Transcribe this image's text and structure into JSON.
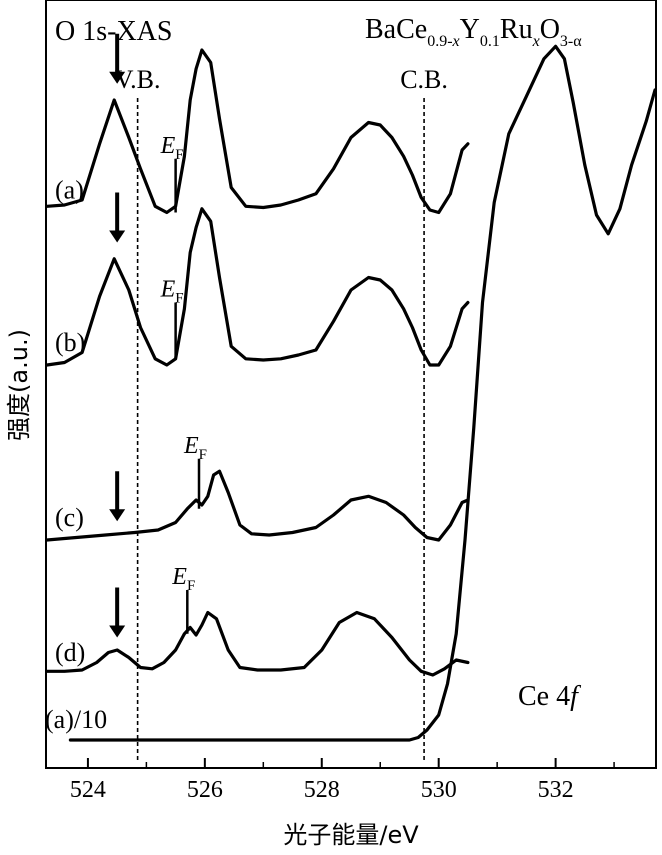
{
  "chart_data": {
    "type": "line",
    "title_left": "O 1s-XAS",
    "title_right_parts": [
      "BaCe",
      "0.9-",
      "x",
      "Y",
      "0.1",
      "Ru",
      "x",
      "O",
      "3-α"
    ],
    "xlabel": "光子能量/eV",
    "ylabel": "强度(a.u.)",
    "xlim": [
      523.3,
      533.7
    ],
    "xticks": [
      524,
      526,
      528,
      530,
      532
    ],
    "vlines": [
      {
        "label": "V.B.",
        "x": 524.85
      },
      {
        "label": "C.B.",
        "x": 529.75
      }
    ],
    "annotation_ce": {
      "text": "Ce 4",
      "italic": "f"
    },
    "ef_label": {
      "e": "E",
      "sub": "F"
    },
    "series": [
      {
        "name": "(a)",
        "offset": 4.22,
        "x": [
          523.3,
          523.6,
          523.9,
          524.2,
          524.45,
          524.7,
          524.9,
          525.15,
          525.35,
          525.5,
          525.65,
          525.75,
          525.85,
          525.95,
          526.1,
          526.25,
          526.45,
          526.7,
          527.0,
          527.3,
          527.6,
          527.9,
          528.2,
          528.5,
          528.8,
          529.0,
          529.2,
          529.4,
          529.55,
          529.7,
          529.85,
          530.0,
          530.2,
          530.4,
          530.5
        ],
        "y": [
          0.05,
          0.06,
          0.1,
          0.55,
          0.9,
          0.6,
          0.35,
          0.05,
          0.0,
          0.05,
          0.45,
          0.9,
          1.15,
          1.3,
          1.2,
          0.75,
          0.2,
          0.05,
          0.04,
          0.06,
          0.1,
          0.15,
          0.35,
          0.6,
          0.72,
          0.7,
          0.6,
          0.45,
          0.3,
          0.12,
          0.02,
          0.0,
          0.15,
          0.5,
          0.55
        ]
      },
      {
        "name": "(b)",
        "offset": 3.0,
        "x": [
          523.3,
          523.6,
          523.9,
          524.2,
          524.45,
          524.7,
          524.9,
          525.15,
          525.35,
          525.5,
          525.65,
          525.75,
          525.85,
          525.95,
          526.1,
          526.25,
          526.45,
          526.7,
          527.0,
          527.3,
          527.6,
          527.9,
          528.2,
          528.5,
          528.8,
          529.0,
          529.2,
          529.4,
          529.55,
          529.7,
          529.85,
          530.0,
          530.2,
          530.4,
          530.5
        ],
        "y": [
          0.0,
          0.02,
          0.1,
          0.55,
          0.85,
          0.6,
          0.3,
          0.05,
          0.0,
          0.05,
          0.45,
          0.9,
          1.1,
          1.25,
          1.15,
          0.7,
          0.15,
          0.05,
          0.04,
          0.05,
          0.08,
          0.12,
          0.35,
          0.6,
          0.7,
          0.68,
          0.6,
          0.45,
          0.3,
          0.12,
          0.0,
          0.0,
          0.15,
          0.45,
          0.5
        ]
      },
      {
        "name": "(c)",
        "offset": 1.6,
        "x": [
          523.3,
          523.8,
          524.3,
          524.8,
          525.2,
          525.5,
          525.7,
          525.85,
          525.95,
          526.05,
          526.15,
          526.25,
          526.4,
          526.6,
          526.8,
          527.1,
          527.5,
          527.9,
          528.2,
          528.5,
          528.8,
          529.1,
          529.4,
          529.6,
          529.8,
          530.0,
          530.2,
          530.4,
          530.5
        ],
        "y": [
          0.0,
          0.02,
          0.04,
          0.06,
          0.08,
          0.14,
          0.25,
          0.32,
          0.28,
          0.35,
          0.52,
          0.55,
          0.38,
          0.12,
          0.05,
          0.04,
          0.06,
          0.1,
          0.2,
          0.32,
          0.35,
          0.3,
          0.2,
          0.1,
          0.02,
          0.0,
          0.12,
          0.3,
          0.32
        ]
      },
      {
        "name": "(d)",
        "offset": 0.52,
        "x": [
          523.3,
          523.6,
          523.9,
          524.15,
          524.35,
          524.5,
          524.7,
          524.9,
          525.1,
          525.3,
          525.5,
          525.65,
          525.75,
          525.85,
          525.95,
          526.05,
          526.2,
          526.4,
          526.6,
          526.9,
          527.3,
          527.7,
          528.0,
          528.3,
          528.6,
          528.9,
          529.2,
          529.5,
          529.7,
          529.9,
          530.1,
          530.3,
          530.5
        ],
        "y": [
          0.03,
          0.03,
          0.04,
          0.1,
          0.18,
          0.2,
          0.14,
          0.06,
          0.05,
          0.1,
          0.2,
          0.33,
          0.38,
          0.32,
          0.4,
          0.5,
          0.45,
          0.2,
          0.06,
          0.04,
          0.04,
          0.06,
          0.2,
          0.42,
          0.5,
          0.45,
          0.3,
          0.12,
          0.03,
          0.0,
          0.05,
          0.12,
          0.1
        ]
      },
      {
        "name": "(a)/10",
        "offset": 0.0,
        "x": [
          523.7,
          525.0,
          526.5,
          528.0,
          529.0,
          529.5,
          529.65,
          529.8,
          530.0,
          530.15,
          530.3,
          530.45,
          530.6,
          530.75,
          530.95,
          531.2,
          531.5,
          531.8,
          532.0,
          532.15,
          532.3,
          532.5,
          532.7,
          532.9,
          533.1,
          533.3,
          533.55,
          533.7
        ],
        "y": [
          0.0,
          0.0,
          0.0,
          0.0,
          0.0,
          0.0,
          0.02,
          0.08,
          0.2,
          0.45,
          0.85,
          1.6,
          2.5,
          3.5,
          4.3,
          4.85,
          5.15,
          5.45,
          5.55,
          5.45,
          5.1,
          4.6,
          4.2,
          4.05,
          4.25,
          4.6,
          4.95,
          5.2
        ]
      }
    ],
    "ef_markers": [
      {
        "series": "(a)",
        "x": 525.5,
        "y_from": 4.22,
        "y_to": 4.65
      },
      {
        "series": "(b)",
        "x": 525.5,
        "y_from": 3.05,
        "y_to": 3.5
      },
      {
        "series": "(c)",
        "x": 525.9,
        "y_from": 1.85,
        "y_to": 2.25
      },
      {
        "series": "(d)",
        "x": 525.7,
        "y_from": 0.85,
        "y_to": 1.2
      }
    ],
    "arrows": [
      {
        "series": "(a)",
        "x": 524.5,
        "y_tip": 5.25,
        "y_tail": 5.65
      },
      {
        "series": "(b)",
        "x": 524.5,
        "y_tip": 3.98,
        "y_tail": 4.38
      },
      {
        "series": "(c)",
        "x": 524.5,
        "y_tip": 1.75,
        "y_tail": 2.15
      },
      {
        "series": "(d)",
        "x": 524.5,
        "y_tip": 0.82,
        "y_tail": 1.22
      }
    ]
  }
}
